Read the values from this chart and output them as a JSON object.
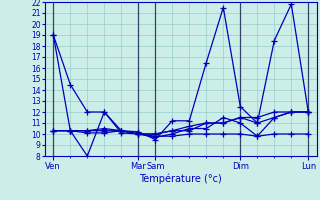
{
  "xlabel": "Température (°c)",
  "ylim": [
    8,
    22
  ],
  "yticks": [
    8,
    9,
    10,
    11,
    12,
    13,
    14,
    15,
    16,
    17,
    18,
    19,
    20,
    21,
    22
  ],
  "background_color": "#cceee8",
  "grid_color": "#99cccc",
  "line_color": "#0000bb",
  "sep_color": "#334466",
  "major_tick_positions": [
    0,
    5,
    6,
    11,
    15
  ],
  "major_tick_labels": [
    "Ven",
    "Mar",
    "Sam",
    "Dim",
    "Lun"
  ],
  "n_points": 16,
  "series": [
    [
      19,
      14.5,
      12,
      12,
      10.3,
      10.2,
      9.5,
      11.2,
      11.2,
      16.5,
      21.5,
      12.5,
      11.0,
      18.5,
      21.8,
      12.0
    ],
    [
      19,
      10.3,
      8.0,
      12,
      10.1,
      10.0,
      9.7,
      10.0,
      10.5,
      10.5,
      11.5,
      11.0,
      9.8,
      11.5,
      12.0,
      12.0
    ],
    [
      10.3,
      10.3,
      10.1,
      10.1,
      10.3,
      10.0,
      10.0,
      10.3,
      10.3,
      11.0,
      11.0,
      11.5,
      11.0,
      11.5,
      12.0,
      12.0
    ],
    [
      10.3,
      10.3,
      10.3,
      10.5,
      10.3,
      10.0,
      10.0,
      10.3,
      10.7,
      11.0,
      11.0,
      11.5,
      11.5,
      12.0,
      12.0,
      12.0
    ],
    [
      10.3,
      10.3,
      10.3,
      10.3,
      10.3,
      10.0,
      9.8,
      9.8,
      10.0,
      10.0,
      10.0,
      10.0,
      9.8,
      10.0,
      10.0,
      10.0
    ]
  ]
}
